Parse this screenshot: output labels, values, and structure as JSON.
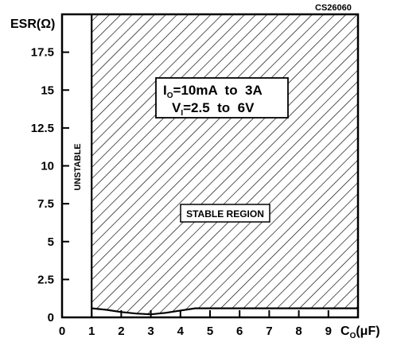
{
  "figure_id": "CS26060",
  "chart_data": {
    "type": "area",
    "y_axis_title": "ESR(Ω)",
    "x_axis_title": "C",
    "x_axis_title_sub": "O",
    "x_axis_title_unit": "(μF)",
    "xlim": [
      0,
      10
    ],
    "ylim": [
      0,
      20
    ],
    "x_ticks": [
      0,
      1,
      2,
      3,
      4,
      5,
      6,
      7,
      8,
      9
    ],
    "x_tick_labels": [
      "0",
      "1",
      "2",
      "3",
      "4",
      "5",
      "6",
      "7",
      "8",
      "9"
    ],
    "y_ticks": [
      0,
      2.5,
      5,
      7.5,
      10,
      12.5,
      15,
      17.5
    ],
    "y_tick_labels": [
      "0",
      "2.5",
      "5",
      "7.5",
      "10",
      "12.5",
      "15",
      "17.5"
    ],
    "stable_region_lower_boundary": {
      "x": [
        1,
        1.5,
        2,
        2.5,
        3,
        3.5,
        4,
        4.5,
        5,
        6,
        7,
        8,
        9,
        10
      ],
      "y": [
        0.6,
        0.5,
        0.35,
        0.25,
        0.2,
        0.3,
        0.45,
        0.6,
        0.6,
        0.6,
        0.6,
        0.6,
        0.6,
        0.6
      ]
    },
    "stable_region_x_min": 1,
    "conditions": {
      "line1_prefix": "I",
      "line1_sub": "O",
      "line1_rest": "=10mA  to  3A",
      "line2_prefix": "V",
      "line2_sub": "I",
      "line2_rest": "=2.5  to  6V"
    },
    "region_labels": {
      "stable": "STABLE REGION",
      "unstable": "UNSTABLE"
    },
    "grid": false,
    "hatch_color": "#000000"
  }
}
